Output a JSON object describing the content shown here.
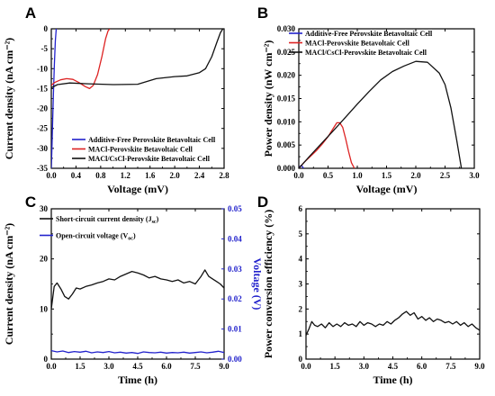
{
  "chart_data": [
    {
      "panel": "A",
      "type": "line",
      "xlabel": "Voltage (mV)",
      "ylabel": "Current density (nA cm⁻²)",
      "xlim": [
        0.0,
        2.8
      ],
      "ylim": [
        -35,
        0
      ],
      "xticks": [
        "0.0",
        "0.4",
        "0.8",
        "1.2",
        "1.6",
        "2.0",
        "2.4",
        "2.8"
      ],
      "xtick_values": [
        0.0,
        0.4,
        0.8,
        1.2,
        1.6,
        2.0,
        2.4,
        2.8
      ],
      "yticks": [
        "0",
        "-5",
        "-10",
        "-15",
        "-20",
        "-25",
        "-30",
        "-35"
      ],
      "ytick_values": [
        0,
        -5,
        -10,
        -15,
        -20,
        -25,
        -30,
        -35
      ],
      "legend": "bottom-right",
      "series": [
        {
          "name": "Additive-Free Perovskite Betavoltaic Cell",
          "color": "#2222cc",
          "x": [
            0.0,
            0.01,
            0.02,
            0.035,
            0.05,
            0.065,
            0.08
          ],
          "y": [
            -35,
            -30,
            -24,
            -16,
            -9,
            -3,
            0
          ]
        },
        {
          "name": "MACl-Perovskite Betavoltaic Cell",
          "color": "#dd2222",
          "x": [
            0.0,
            0.05,
            0.15,
            0.25,
            0.35,
            0.45,
            0.55,
            0.62,
            0.68,
            0.75,
            0.82,
            0.88,
            0.92,
            0.95
          ],
          "y": [
            -14.2,
            -13.5,
            -12.8,
            -12.5,
            -12.7,
            -13.5,
            -14.5,
            -15.0,
            -14.2,
            -11.5,
            -7.0,
            -2.5,
            -0.5,
            0
          ]
        },
        {
          "name": "MACl/CsCl-Perovskite Betavoltaic Cell",
          "color": "#111111",
          "x": [
            0.0,
            0.1,
            0.3,
            0.6,
            1.0,
            1.4,
            1.7,
            2.0,
            2.2,
            2.4,
            2.5,
            2.6,
            2.68,
            2.74,
            2.78
          ],
          "y": [
            -14.8,
            -14.0,
            -13.6,
            -13.8,
            -14.0,
            -13.9,
            -12.5,
            -12.0,
            -11.8,
            -11.0,
            -10.0,
            -7.0,
            -3.5,
            -1.0,
            0
          ]
        }
      ]
    },
    {
      "panel": "B",
      "type": "line",
      "xlabel": "Voltage (mV)",
      "ylabel": "Power density (nW cm⁻²)",
      "xlim": [
        0.0,
        3.0
      ],
      "ylim": [
        0.0,
        0.03
      ],
      "xticks": [
        "0.0",
        "0.5",
        "1.0",
        "1.5",
        "2.0",
        "2.5",
        "3.0"
      ],
      "xtick_values": [
        0.0,
        0.5,
        1.0,
        1.5,
        2.0,
        2.5,
        3.0
      ],
      "yticks": [
        "0.000",
        "0.005",
        "0.010",
        "0.015",
        "0.020",
        "0.025",
        "0.030"
      ],
      "ytick_values": [
        0.0,
        0.005,
        0.01,
        0.015,
        0.02,
        0.025,
        0.03
      ],
      "legend": "top-left",
      "series": [
        {
          "name": "Additive-Free Perovskite Betavoltaic Cell",
          "color": "#2222cc",
          "x": [
            0.0,
            0.02,
            0.04,
            0.06,
            0.08
          ],
          "y": [
            0.0,
            0.0004,
            0.0006,
            0.0004,
            0.0
          ]
        },
        {
          "name": "MACl-Perovskite Betavoltaic Cell",
          "color": "#dd2222",
          "x": [
            0.0,
            0.1,
            0.2,
            0.3,
            0.4,
            0.5,
            0.6,
            0.65,
            0.7,
            0.75,
            0.8,
            0.85,
            0.9,
            0.95
          ],
          "y": [
            0.0,
            0.0014,
            0.0026,
            0.0038,
            0.0052,
            0.0068,
            0.0088,
            0.0098,
            0.0098,
            0.0088,
            0.0064,
            0.0036,
            0.0012,
            0.0
          ]
        },
        {
          "name": "MACl/CsCl-Perovskite Betavoltaic Cell",
          "color": "#111111",
          "x": [
            0.0,
            0.2,
            0.4,
            0.6,
            0.8,
            1.0,
            1.2,
            1.4,
            1.6,
            1.8,
            2.0,
            2.2,
            2.4,
            2.5,
            2.6,
            2.7,
            2.78
          ],
          "y": [
            0.0,
            0.0028,
            0.0055,
            0.0082,
            0.011,
            0.0138,
            0.0165,
            0.019,
            0.0208,
            0.022,
            0.023,
            0.0228,
            0.0205,
            0.018,
            0.013,
            0.006,
            0.0
          ]
        }
      ]
    },
    {
      "panel": "C",
      "type": "line",
      "xlabel": "Time (h)",
      "ylabel": "Current density (nA cm⁻²)",
      "ylabel_right": "Voltage (V)",
      "xlim": [
        0.0,
        9.0
      ],
      "ylim": [
        0,
        30
      ],
      "ylim_right": [
        0.0,
        0.05
      ],
      "xticks": [
        "0.0",
        "1.5",
        "3.0",
        "4.5",
        "6.0",
        "7.5",
        "9.0"
      ],
      "xtick_values": [
        0.0,
        1.5,
        3.0,
        4.5,
        6.0,
        7.5,
        9.0
      ],
      "yticks": [
        "0",
        "10",
        "20",
        "30"
      ],
      "ytick_values": [
        0,
        10,
        20,
        30
      ],
      "yticks_right": [
        "0.00",
        "0.01",
        "0.02",
        "0.03",
        "0.04",
        "0.05"
      ],
      "ytick_values_right": [
        0.0,
        0.01,
        0.02,
        0.03,
        0.04,
        0.05
      ],
      "legend": "top-left",
      "series": [
        {
          "name": "Short-circuit current density (J",
          "subscript": "sc",
          "close": ")",
          "color": "#111111",
          "axis": "left",
          "x": [
            0.0,
            0.15,
            0.3,
            0.5,
            0.7,
            0.9,
            1.1,
            1.3,
            1.5,
            1.8,
            2.1,
            2.4,
            2.7,
            3.0,
            3.3,
            3.6,
            3.9,
            4.2,
            4.5,
            4.8,
            5.1,
            5.4,
            5.7,
            6.0,
            6.3,
            6.6,
            6.9,
            7.2,
            7.5,
            7.8,
            8.0,
            8.2,
            8.4,
            8.6,
            8.8,
            9.0
          ],
          "y": [
            10.0,
            14.5,
            15.2,
            14.0,
            12.5,
            12.0,
            13.0,
            14.2,
            14.0,
            14.5,
            14.8,
            15.2,
            15.5,
            16.0,
            15.8,
            16.5,
            17.0,
            17.5,
            17.2,
            16.8,
            16.2,
            16.5,
            16.0,
            15.8,
            15.5,
            15.8,
            15.2,
            15.5,
            15.0,
            16.5,
            17.8,
            16.5,
            16.0,
            15.5,
            15.0,
            14.2
          ]
        },
        {
          "name": "Open-circuit voltage (V",
          "subscript": "oc",
          "close": ")",
          "color": "#2222cc",
          "axis": "right",
          "x": [
            0.0,
            0.3,
            0.6,
            0.9,
            1.2,
            1.5,
            1.8,
            2.1,
            2.4,
            2.7,
            3.0,
            3.3,
            3.6,
            3.9,
            4.2,
            4.5,
            4.8,
            5.1,
            5.4,
            5.7,
            6.0,
            6.3,
            6.6,
            6.9,
            7.2,
            7.5,
            7.8,
            8.1,
            8.4,
            8.7,
            9.0
          ],
          "y": [
            0.0028,
            0.0024,
            0.0027,
            0.0022,
            0.0025,
            0.0023,
            0.0026,
            0.0021,
            0.0024,
            0.0022,
            0.0025,
            0.0021,
            0.0023,
            0.002,
            0.0022,
            0.0019,
            0.0024,
            0.0022,
            0.0021,
            0.0023,
            0.002,
            0.0022,
            0.0021,
            0.0023,
            0.002,
            0.0022,
            0.0024,
            0.0021,
            0.0023,
            0.0026,
            0.0022
          ]
        }
      ]
    },
    {
      "panel": "D",
      "type": "line",
      "xlabel": "Time (h)",
      "ylabel": "Power conversion efficiency (%)",
      "xlim": [
        0.0,
        9.0
      ],
      "ylim": [
        0,
        6
      ],
      "xticks": [
        "0.0",
        "1.5",
        "3.0",
        "4.5",
        "6.0",
        "7.5",
        "9.0"
      ],
      "xtick_values": [
        0.0,
        1.5,
        3.0,
        4.5,
        6.0,
        7.5,
        9.0
      ],
      "yticks": [
        "0",
        "1",
        "2",
        "3",
        "4",
        "5",
        "6"
      ],
      "ytick_values": [
        0,
        1,
        2,
        3,
        4,
        5,
        6
      ],
      "series": [
        {
          "color": "#111111",
          "x": [
            0.0,
            0.15,
            0.3,
            0.45,
            0.6,
            0.8,
            1.0,
            1.2,
            1.4,
            1.6,
            1.8,
            2.0,
            2.2,
            2.4,
            2.6,
            2.8,
            3.0,
            3.2,
            3.4,
            3.6,
            3.8,
            4.0,
            4.2,
            4.4,
            4.6,
            4.8,
            5.0,
            5.2,
            5.4,
            5.6,
            5.8,
            6.0,
            6.2,
            6.4,
            6.6,
            6.8,
            7.0,
            7.2,
            7.4,
            7.6,
            7.8,
            8.0,
            8.2,
            8.4,
            8.6,
            8.8,
            9.0
          ],
          "y": [
            0.95,
            1.2,
            1.5,
            1.35,
            1.3,
            1.4,
            1.25,
            1.45,
            1.3,
            1.4,
            1.3,
            1.45,
            1.35,
            1.4,
            1.3,
            1.5,
            1.35,
            1.45,
            1.4,
            1.3,
            1.4,
            1.35,
            1.5,
            1.4,
            1.55,
            1.65,
            1.8,
            1.9,
            1.75,
            1.85,
            1.6,
            1.7,
            1.55,
            1.65,
            1.5,
            1.6,
            1.55,
            1.45,
            1.5,
            1.4,
            1.5,
            1.35,
            1.45,
            1.3,
            1.4,
            1.25,
            1.15
          ]
        }
      ]
    }
  ]
}
